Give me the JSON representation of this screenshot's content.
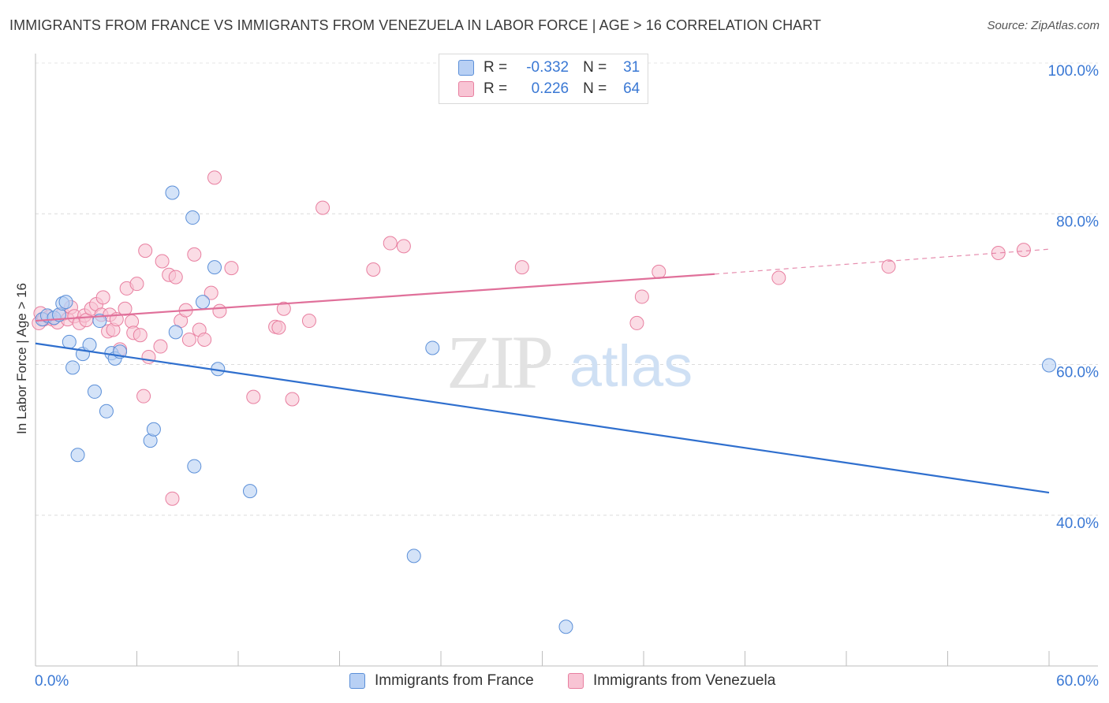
{
  "header": {
    "title": "IMMIGRANTS FROM FRANCE VS IMMIGRANTS FROM VENEZUELA IN LABOR FORCE | AGE > 16 CORRELATION CHART",
    "source": "Source: ZipAtlas.com"
  },
  "watermark": {
    "zip": "ZIP",
    "atlas": "atlas"
  },
  "legend": {
    "rows": [
      {
        "r_label": "R =",
        "r_value": "-0.332",
        "n_label": "N =",
        "n_value": "31"
      },
      {
        "r_label": "R =",
        "r_value": "0.226",
        "n_label": "N =",
        "n_value": "64"
      }
    ]
  },
  "colors": {
    "france_fill": "#b8d0f4",
    "france_stroke": "#5b8fd8",
    "france_line": "#2f6fce",
    "venezuela_fill": "#f8c4d4",
    "venezuela_stroke": "#e87fa0",
    "venezuela_line": "#e0709a",
    "tick_label": "#3a78d4"
  },
  "chart_data": {
    "type": "scatter",
    "title": "IMMIGRANTS FROM FRANCE VS IMMIGRANTS FROM VENEZUELA IN LABOR FORCE | AGE > 16 CORRELATION CHART",
    "xlabel": "",
    "ylabel": "In Labor Force | Age > 16",
    "xlim": [
      0,
      60
    ],
    "ylim": [
      20,
      100
    ],
    "x_tick_labels": [
      "0.0%",
      "60.0%"
    ],
    "y_tick_labels": [
      "40.0%",
      "60.0%",
      "80.0%",
      "100.0%"
    ],
    "y_ticks": [
      40,
      60,
      80,
      100
    ],
    "grid": true,
    "legend_position": "bottom",
    "series": [
      {
        "name": "Immigrants from France",
        "points": [
          [
            0.4,
            66.0
          ],
          [
            0.7,
            66.5
          ],
          [
            1.1,
            66.2
          ],
          [
            1.4,
            66.6
          ],
          [
            1.6,
            68.1
          ],
          [
            1.8,
            68.3
          ],
          [
            2.0,
            63.0
          ],
          [
            2.2,
            59.6
          ],
          [
            2.5,
            48.0
          ],
          [
            2.8,
            61.4
          ],
          [
            3.2,
            62.6
          ],
          [
            3.5,
            56.4
          ],
          [
            3.8,
            65.8
          ],
          [
            4.2,
            53.8
          ],
          [
            4.5,
            61.5
          ],
          [
            4.7,
            60.8
          ],
          [
            5.0,
            61.7
          ],
          [
            6.8,
            49.9
          ],
          [
            7.0,
            51.4
          ],
          [
            8.1,
            82.8
          ],
          [
            8.3,
            64.3
          ],
          [
            9.3,
            79.5
          ],
          [
            9.4,
            46.5
          ],
          [
            9.9,
            68.3
          ],
          [
            10.6,
            72.9
          ],
          [
            10.8,
            59.4
          ],
          [
            12.7,
            43.2
          ],
          [
            22.4,
            34.6
          ],
          [
            23.5,
            62.2
          ],
          [
            31.4,
            25.2
          ],
          [
            60.0,
            59.9
          ]
        ],
        "trend": {
          "x": [
            0,
            60
          ],
          "y": [
            62.8,
            43.0
          ]
        }
      },
      {
        "name": "Immigrants from Venezuela",
        "points": [
          [
            0.2,
            65.5
          ],
          [
            0.3,
            66.8
          ],
          [
            0.5,
            66.0
          ],
          [
            0.8,
            66.3
          ],
          [
            1.0,
            66.0
          ],
          [
            1.3,
            65.6
          ],
          [
            1.6,
            66.7
          ],
          [
            1.9,
            66.0
          ],
          [
            2.1,
            67.6
          ],
          [
            2.3,
            66.4
          ],
          [
            2.6,
            65.5
          ],
          [
            2.9,
            66.5
          ],
          [
            3.0,
            65.9
          ],
          [
            3.3,
            67.4
          ],
          [
            3.6,
            68.0
          ],
          [
            3.9,
            66.6
          ],
          [
            4.0,
            68.9
          ],
          [
            4.3,
            64.4
          ],
          [
            4.4,
            66.6
          ],
          [
            4.6,
            64.6
          ],
          [
            4.8,
            66.0
          ],
          [
            5.0,
            62.0
          ],
          [
            5.3,
            67.4
          ],
          [
            5.4,
            70.1
          ],
          [
            5.7,
            65.7
          ],
          [
            5.8,
            64.2
          ],
          [
            6.0,
            70.7
          ],
          [
            6.2,
            63.9
          ],
          [
            6.4,
            55.8
          ],
          [
            6.5,
            75.1
          ],
          [
            6.7,
            61.0
          ],
          [
            7.4,
            62.4
          ],
          [
            7.5,
            73.7
          ],
          [
            7.9,
            71.9
          ],
          [
            8.1,
            42.2
          ],
          [
            8.3,
            71.6
          ],
          [
            8.6,
            65.8
          ],
          [
            8.9,
            67.2
          ],
          [
            9.1,
            63.3
          ],
          [
            9.4,
            74.6
          ],
          [
            9.7,
            64.6
          ],
          [
            10.0,
            63.3
          ],
          [
            10.4,
            69.5
          ],
          [
            10.6,
            84.8
          ],
          [
            10.9,
            67.1
          ],
          [
            11.6,
            72.8
          ],
          [
            12.9,
            55.7
          ],
          [
            14.2,
            65.0
          ],
          [
            14.4,
            64.9
          ],
          [
            14.7,
            67.4
          ],
          [
            15.2,
            55.4
          ],
          [
            16.2,
            65.8
          ],
          [
            17.0,
            80.8
          ],
          [
            20.0,
            72.6
          ],
          [
            21.0,
            76.1
          ],
          [
            21.8,
            75.7
          ],
          [
            28.8,
            72.9
          ],
          [
            35.6,
            65.5
          ],
          [
            35.9,
            69.0
          ],
          [
            36.9,
            72.3
          ],
          [
            44.0,
            71.5
          ],
          [
            50.5,
            73.0
          ],
          [
            57.0,
            74.8
          ],
          [
            58.5,
            75.2
          ]
        ],
        "trend": {
          "x": [
            0,
            40.2
          ],
          "y": [
            65.8,
            72.0
          ]
        },
        "trend_extension": {
          "x": [
            40.2,
            60
          ],
          "y": [
            72.0,
            75.3
          ]
        }
      }
    ]
  }
}
